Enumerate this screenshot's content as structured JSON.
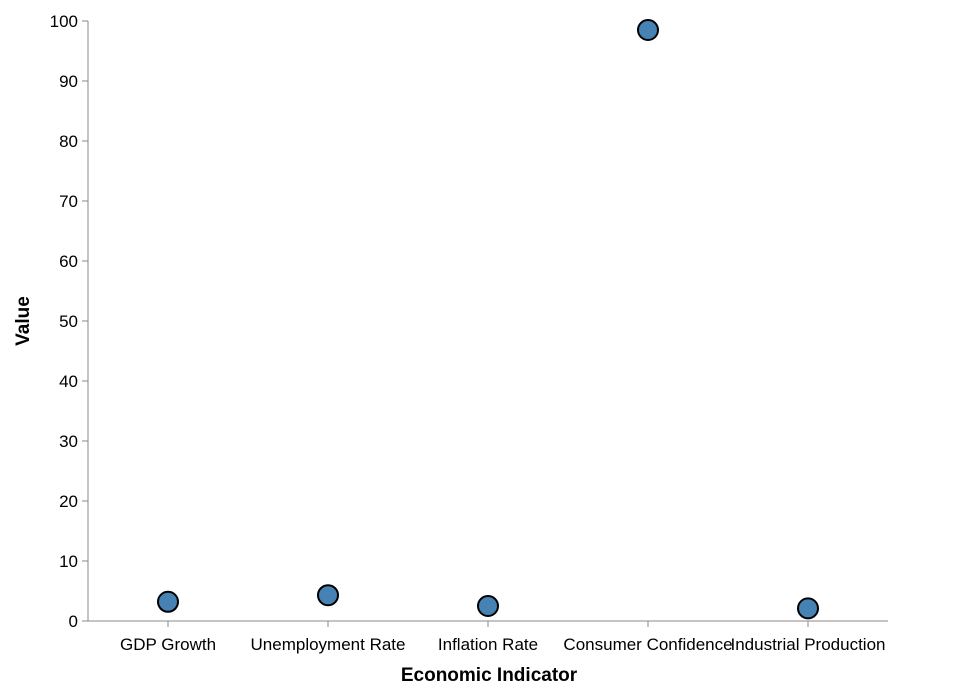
{
  "chart_data": {
    "type": "scatter",
    "title": "",
    "xlabel": "Economic Indicator",
    "ylabel": "Value",
    "categories": [
      "GDP Growth",
      "Unemployment Rate",
      "Inflation Rate",
      "Consumer Confidence",
      "Industrial Production"
    ],
    "values": [
      3.2,
      4.3,
      2.5,
      98.5,
      2.1
    ],
    "ylim": [
      0,
      100
    ],
    "yticks": [
      0,
      10,
      20,
      30,
      40,
      50,
      60,
      70,
      80,
      90,
      100
    ],
    "grid": false,
    "legend": "none",
    "colors": {
      "point_fill": "#4682b4",
      "point_stroke": "#000000",
      "axis": "#888888"
    }
  }
}
